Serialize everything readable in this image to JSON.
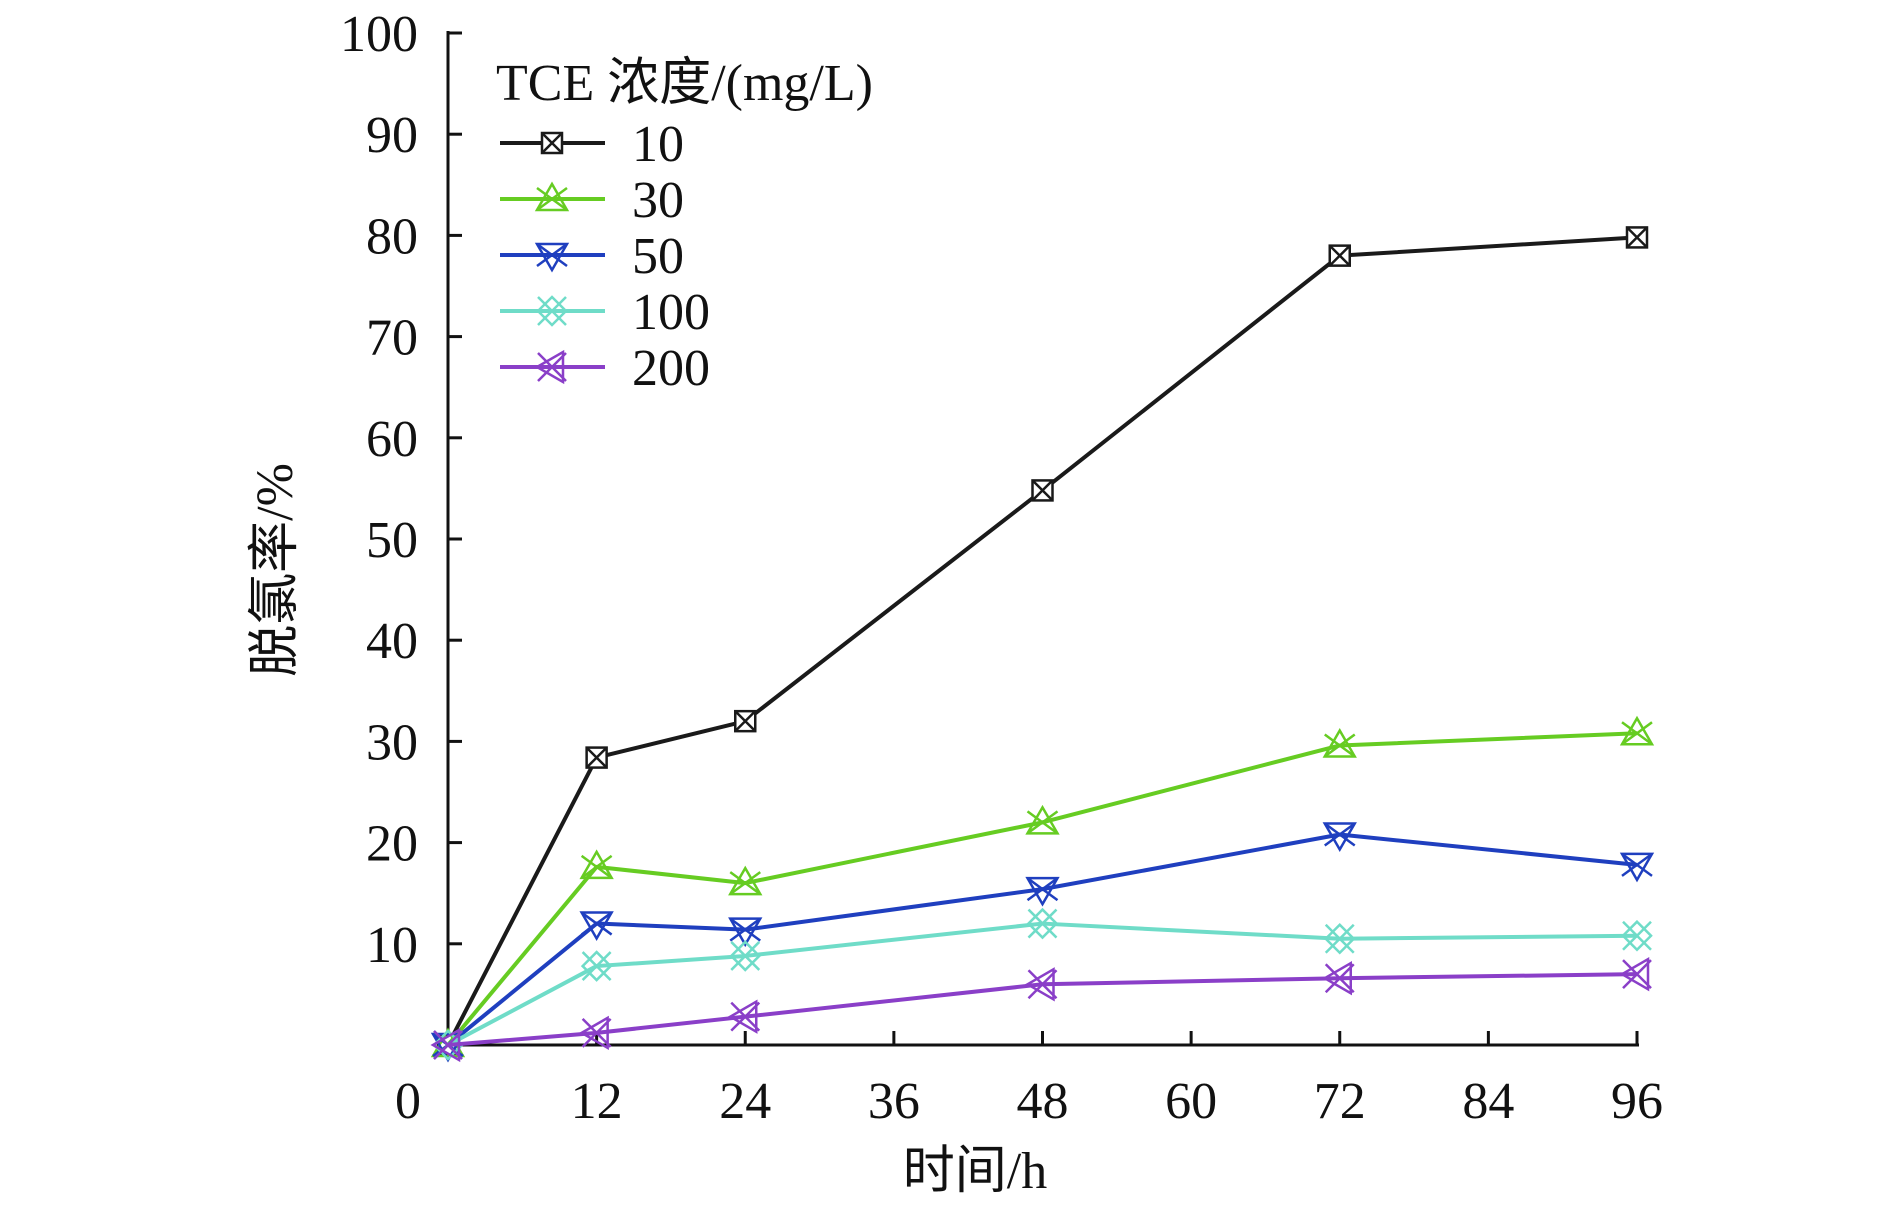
{
  "chart_data": {
    "type": "line",
    "title": "",
    "xlabel": "时间/h",
    "ylabel": "脱氯率/%",
    "xlim": [
      0,
      96
    ],
    "ylim": [
      0,
      100
    ],
    "x_ticks": [
      0,
      12,
      24,
      36,
      48,
      60,
      72,
      84,
      96
    ],
    "y_ticks": [
      10,
      20,
      30,
      40,
      50,
      60,
      70,
      80,
      90,
      100
    ],
    "x": [
      0,
      12,
      24,
      48,
      72,
      96
    ],
    "legend_title": "TCE 浓度/(mg/L)",
    "legend_position": "top-left",
    "grid": false,
    "series": [
      {
        "name": "10",
        "color": "#1a1a1a",
        "marker": "square-x",
        "values": [
          0,
          28.4,
          32,
          54.8,
          78,
          79.8
        ]
      },
      {
        "name": "30",
        "color": "#66cc22",
        "marker": "triangle-up",
        "values": [
          0,
          17.6,
          16,
          22,
          29.6,
          30.8
        ]
      },
      {
        "name": "50",
        "color": "#1f3fbf",
        "marker": "triangle-down",
        "values": [
          0,
          12,
          11.4,
          15.4,
          20.8,
          17.8
        ]
      },
      {
        "name": "100",
        "color": "#6fdcc8",
        "marker": "diamond-x",
        "values": [
          0,
          7.8,
          8.8,
          12,
          10.5,
          10.8
        ]
      },
      {
        "name": "200",
        "color": "#8a3fc8",
        "marker": "triangle-left",
        "values": [
          0,
          1.2,
          2.8,
          6,
          6.6,
          7
        ]
      }
    ]
  }
}
